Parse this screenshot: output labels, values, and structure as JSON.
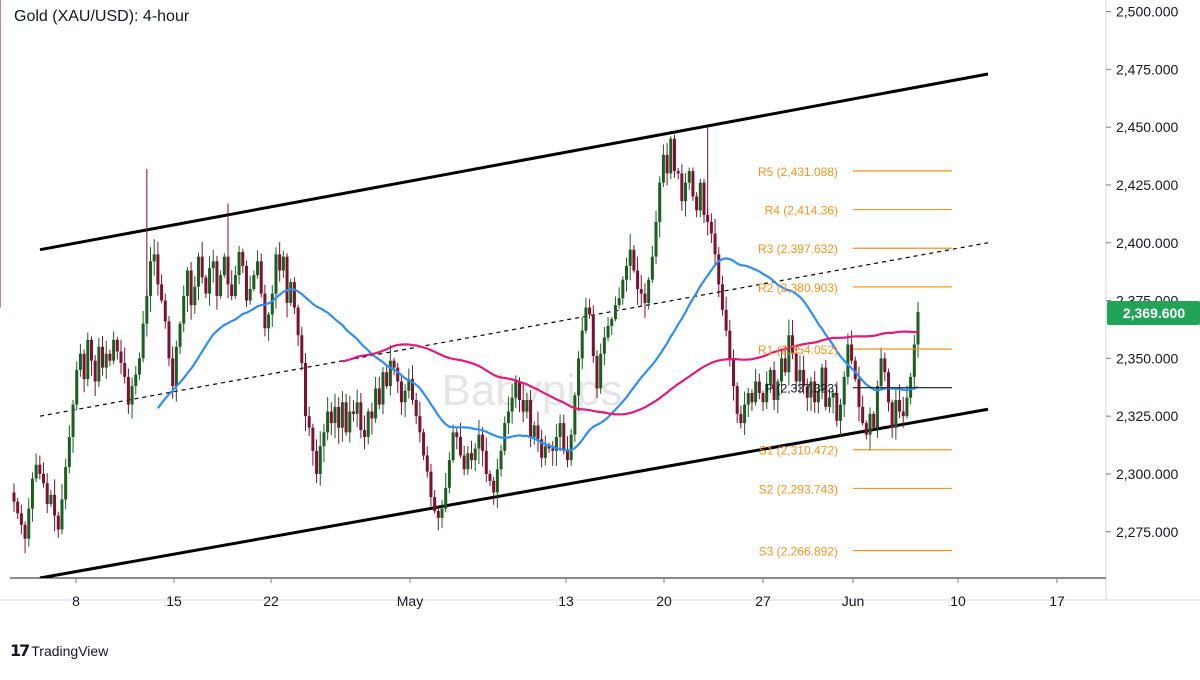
{
  "chart_title": "Gold (XAU/USD): 4-hour",
  "watermark": "Babypips",
  "branding": "TradingView",
  "colors": {
    "up": "#1b5e20",
    "down": "#7b1230",
    "ma_fast": "#2f8ef0",
    "ma_slow": "#e3197a",
    "pivot_level": "#f7931e",
    "pivot_label": "#f7931e",
    "price_tag": "#22a35a",
    "trendline": "#000000"
  },
  "chart_data": {
    "type": "candlestick",
    "title": "Gold (XAU/USD): 4-hour",
    "ylim": [
      2255,
      2505
    ],
    "y_ticks": [
      "2,500.000",
      "2,475.000",
      "2,450.000",
      "2,425.000",
      "2,400.000",
      "2,375.000",
      "2,350.000",
      "2,325.000",
      "2,300.000",
      "2,275.000"
    ],
    "x_ticks": [
      "8",
      "15",
      "22",
      "May",
      "13",
      "20",
      "27",
      "Jun",
      "10",
      "17"
    ],
    "current_price": "2,369.600",
    "pivot_levels": [
      {
        "label": "R5 (2,431.088)",
        "value": 2431.088
      },
      {
        "label": "R4 (2,414.36)",
        "value": 2414.36
      },
      {
        "label": "R3 (2,397.632)",
        "value": 2397.632
      },
      {
        "label": "R2 (2,380.903)",
        "value": 2380.903
      },
      {
        "label": "R1 (2,354.052)",
        "value": 2354.052
      },
      {
        "label": "P (2,337.323)",
        "value": 2337.323
      },
      {
        "label": "S1 (2,310.472)",
        "value": 2310.472
      },
      {
        "label": "S2 (2,293.743)",
        "value": 2293.743
      },
      {
        "label": "S3 (2,266.892)",
        "value": 2266.892
      }
    ],
    "candles_close": [
      2288,
      2283,
      2278,
      2272,
      2285,
      2298,
      2304,
      2300,
      2296,
      2287,
      2291,
      2282,
      2276,
      2289,
      2303,
      2316,
      2330,
      2345,
      2352,
      2341,
      2358,
      2349,
      2340,
      2355,
      2346,
      2352,
      2349,
      2358,
      2353,
      2348,
      2342,
      2330,
      2338,
      2343,
      2350,
      2365,
      2377,
      2392,
      2395,
      2382,
      2375,
      2366,
      2350,
      2338,
      2355,
      2365,
      2377,
      2388,
      2373,
      2381,
      2394,
      2385,
      2378,
      2389,
      2392,
      2377,
      2386,
      2394,
      2382,
      2377,
      2386,
      2396,
      2390,
      2375,
      2380,
      2386,
      2392,
      2378,
      2363,
      2369,
      2378,
      2395,
      2388,
      2394,
      2374,
      2383,
      2372,
      2360,
      2348,
      2325,
      2320,
      2310,
      2300,
      2312,
      2318,
      2327,
      2322,
      2329,
      2320,
      2331,
      2318,
      2327,
      2326,
      2331,
      2319,
      2316,
      2327,
      2324,
      2337,
      2330,
      2344,
      2338,
      2349,
      2346,
      2340,
      2331,
      2336,
      2341,
      2332,
      2325,
      2318,
      2308,
      2301,
      2290,
      2284,
      2281,
      2285,
      2294,
      2306,
      2318,
      2316,
      2308,
      2302,
      2309,
      2306,
      2311,
      2317,
      2310,
      2300,
      2297,
      2292,
      2302,
      2310,
      2322,
      2327,
      2333,
      2340,
      2332,
      2327,
      2332,
      2316,
      2321,
      2315,
      2307,
      2312,
      2311,
      2310,
      2316,
      2322,
      2310,
      2306,
      2317,
      2334,
      2350,
      2362,
      2372,
      2369,
      2351,
      2337,
      2352,
      2359,
      2364,
      2367,
      2373,
      2376,
      2384,
      2390,
      2397,
      2388,
      2380,
      2378,
      2374,
      2384,
      2394,
      2409,
      2426,
      2438,
      2430,
      2445,
      2431,
      2430,
      2418,
      2426,
      2431,
      2420,
      2414,
      2426,
      2412,
      2409,
      2404,
      2395,
      2382,
      2371,
      2362,
      2350,
      2338,
      2326,
      2322,
      2330,
      2335,
      2331,
      2340,
      2335,
      2331,
      2339,
      2345,
      2332,
      2340,
      2350,
      2344,
      2360,
      2352,
      2340,
      2345,
      2338,
      2333,
      2340,
      2331,
      2336,
      2346,
      2329,
      2333,
      2335,
      2323,
      2330,
      2342,
      2356,
      2349,
      2341,
      2329,
      2322,
      2317,
      2326,
      2320,
      2338,
      2350,
      2344,
      2331,
      2320,
      2332,
      2327,
      2325,
      2333,
      2342,
      2356,
      2370
    ],
    "trendlines": [
      {
        "name": "upper",
        "from": [
          0.0,
          2397
        ],
        "to": [
          1.0,
          2473
        ],
        "style": "solid"
      },
      {
        "name": "middle",
        "from": [
          0.0,
          2325
        ],
        "to": [
          1.0,
          2400
        ],
        "style": "dashed"
      },
      {
        "name": "lower",
        "from": [
          0.0,
          2255
        ],
        "to": [
          1.0,
          2328
        ],
        "style": "solid"
      }
    ]
  }
}
